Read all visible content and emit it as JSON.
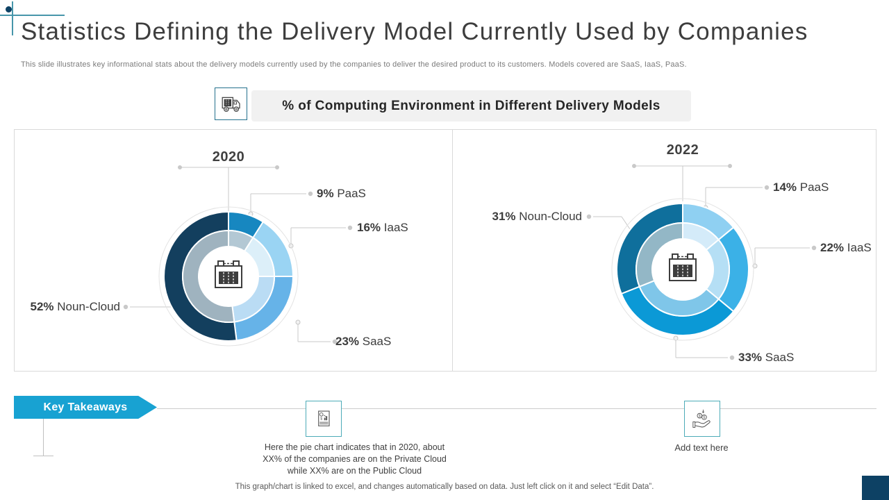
{
  "slide": {
    "title": "Statistics  Defining the Delivery Model Currently Used by Companies",
    "subtitle": "This slide illustrates key informational stats about the delivery  models currently used by the companies to deliver the  desired product to its customers. Models covered are SaaS, IaaS, PaaS."
  },
  "header": {
    "icon": "delivery-truck-icon",
    "label": "% of Computing  Environment in Different  Delivery  Models"
  },
  "chart_data": [
    {
      "type": "pie",
      "variant": "double-ring-donut",
      "title": "2020",
      "categories": [
        "PaaS",
        "IaaS",
        "SaaS",
        "Noun-Cloud"
      ],
      "values": [
        9,
        16,
        23,
        52
      ],
      "colors": [
        "#1787c0",
        "#9ad4f3",
        "#66b3e8",
        "#133f5e"
      ],
      "inner_colors": [
        "#b3c8d4",
        "#dceff9",
        "#badcf4",
        "#9fb3bf"
      ],
      "center_icon": "calendar-icon",
      "legend_position": "callout-labels",
      "callouts": [
        {
          "value": "9%",
          "label": "PaaS"
        },
        {
          "value": "16%",
          "label": "IaaS"
        },
        {
          "value": "23%",
          "label": "SaaS"
        },
        {
          "value": "52%",
          "label": "Noun-Cloud"
        }
      ]
    },
    {
      "type": "pie",
      "variant": "double-ring-donut",
      "title": "2022",
      "categories": [
        "PaaS",
        "IaaS",
        "SaaS",
        "Noun-Cloud"
      ],
      "values": [
        14,
        22,
        33,
        31
      ],
      "colors": [
        "#8fd0f2",
        "#3bb1e7",
        "#0b99d6",
        "#0f6f9c"
      ],
      "inner_colors": [
        "#d4ebf9",
        "#b5dff5",
        "#7fc6e9",
        "#93b7c6"
      ],
      "center_icon": "calendar-icon",
      "legend_position": "callout-labels",
      "callouts": [
        {
          "value": "14%",
          "label": "PaaS"
        },
        {
          "value": "22%",
          "label": "IaaS"
        },
        {
          "value": "33%",
          "label": "SaaS"
        },
        {
          "value": "31%",
          "label": "Noun-Cloud"
        }
      ]
    }
  ],
  "takeaways": {
    "banner_label": "Key Takeaways",
    "items": [
      {
        "icon": "financial-report-icon",
        "text": "Here the pie chart indicates that in 2020, about XX%  of the companies are on the Private Cloud while XX% are on the Public Cloud"
      },
      {
        "icon": "money-hand-icon",
        "text": "Add text here"
      }
    ]
  },
  "footer": {
    "note": "This graph/chart is linked to excel,  and changes automatically based on data. Just left click on it and select “Edit Data”."
  },
  "theme": {
    "accent_blue": "#18a2d2",
    "dark_navy": "#0d4164",
    "deco_teal": "#4796aa",
    "teal_border": "#4cabb8",
    "icon_box_border": "#23708c"
  }
}
